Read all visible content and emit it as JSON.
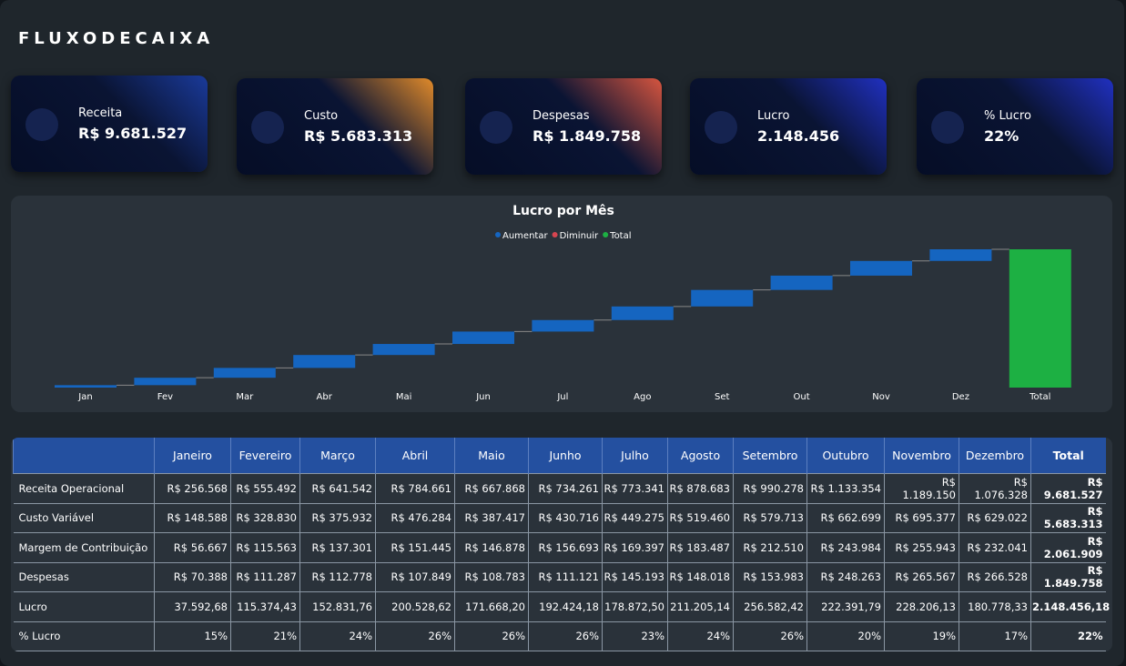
{
  "header": {
    "title": "FLUXODECAIXA"
  },
  "cards": [
    {
      "label": "Receita",
      "value": "R$ 9.681.527"
    },
    {
      "label": "Custo",
      "value": "R$ 5.683.313"
    },
    {
      "label": "Despesas",
      "value": "R$ 1.849.758"
    },
    {
      "label": "Lucro",
      "value": "2.148.456"
    },
    {
      "label": "% Lucro",
      "value": "22%"
    }
  ],
  "chart_data": {
    "type": "waterfall",
    "title": "Lucro por Mês",
    "legend": [
      {
        "name": "Aumentar",
        "color": "#1565c0"
      },
      {
        "name": "Diminuir",
        "color": "#d64550"
      },
      {
        "name": "Total",
        "color": "#1db043"
      }
    ],
    "categories": [
      "Jan",
      "Fev",
      "Mar",
      "Abr",
      "Mai",
      "Jun",
      "Jul",
      "Ago",
      "Set",
      "Out",
      "Nov",
      "Dez"
    ],
    "values": [
      37592.68,
      115374.43,
      152831.76,
      200528.62,
      171668.2,
      192424.18,
      178872.5,
      211205.14,
      256582.42,
      222391.79,
      228206.13,
      180778.33
    ],
    "total_label": "Total",
    "total": 2148456.18
  },
  "table": {
    "columns": [
      "Janeiro",
      "Fevereiro",
      "Março",
      "Abril",
      "Maio",
      "Junho",
      "Julho",
      "Agosto",
      "Setembro",
      "Outubro",
      "Novembro",
      "Dezembro",
      "Total"
    ],
    "rows": [
      [
        "Receita Operacional",
        "R$ 256.568",
        "R$ 555.492",
        "R$ 641.542",
        "R$ 784.661",
        "R$ 667.868",
        "R$ 734.261",
        "R$ 773.341",
        "R$ 878.683",
        "R$ 990.278",
        "R$ 1.133.354",
        "R$ 1.189.150",
        "R$ 1.076.328",
        "R$ 9.681.527"
      ],
      [
        "Custo Variável",
        "R$ 148.588",
        "R$ 328.830",
        "R$ 375.932",
        "R$ 476.284",
        "R$ 387.417",
        "R$ 430.716",
        "R$ 449.275",
        "R$ 519.460",
        "R$ 579.713",
        "R$ 662.699",
        "R$ 695.377",
        "R$ 629.022",
        "R$ 5.683.313"
      ],
      [
        "Margem de Contribuição",
        "R$ 56.667",
        "R$ 115.563",
        "R$ 137.301",
        "R$ 151.445",
        "R$ 146.878",
        "R$ 156.693",
        "R$ 169.397",
        "R$ 183.487",
        "R$ 212.510",
        "R$ 243.984",
        "R$ 255.943",
        "R$ 232.041",
        "R$ 2.061.909"
      ],
      [
        "Despesas",
        "R$ 70.388",
        "R$ 111.287",
        "R$ 112.778",
        "R$ 107.849",
        "R$ 108.783",
        "R$ 111.121",
        "R$ 145.193",
        "R$ 148.018",
        "R$ 153.983",
        "R$ 248.263",
        "R$ 265.567",
        "R$ 266.528",
        "R$ 1.849.758"
      ],
      [
        "Lucro",
        "37.592,68",
        "115.374,43",
        "152.831,76",
        "200.528,62",
        "171.668,20",
        "192.424,18",
        "178.872,50",
        "211.205,14",
        "256.582,42",
        "222.391,79",
        "228.206,13",
        "180.778,33",
        "2.148.456,18"
      ],
      [
        "% Lucro",
        "15%",
        "21%",
        "24%",
        "26%",
        "26%",
        "26%",
        "23%",
        "24%",
        "26%",
        "20%",
        "19%",
        "17%",
        "22%"
      ]
    ]
  }
}
